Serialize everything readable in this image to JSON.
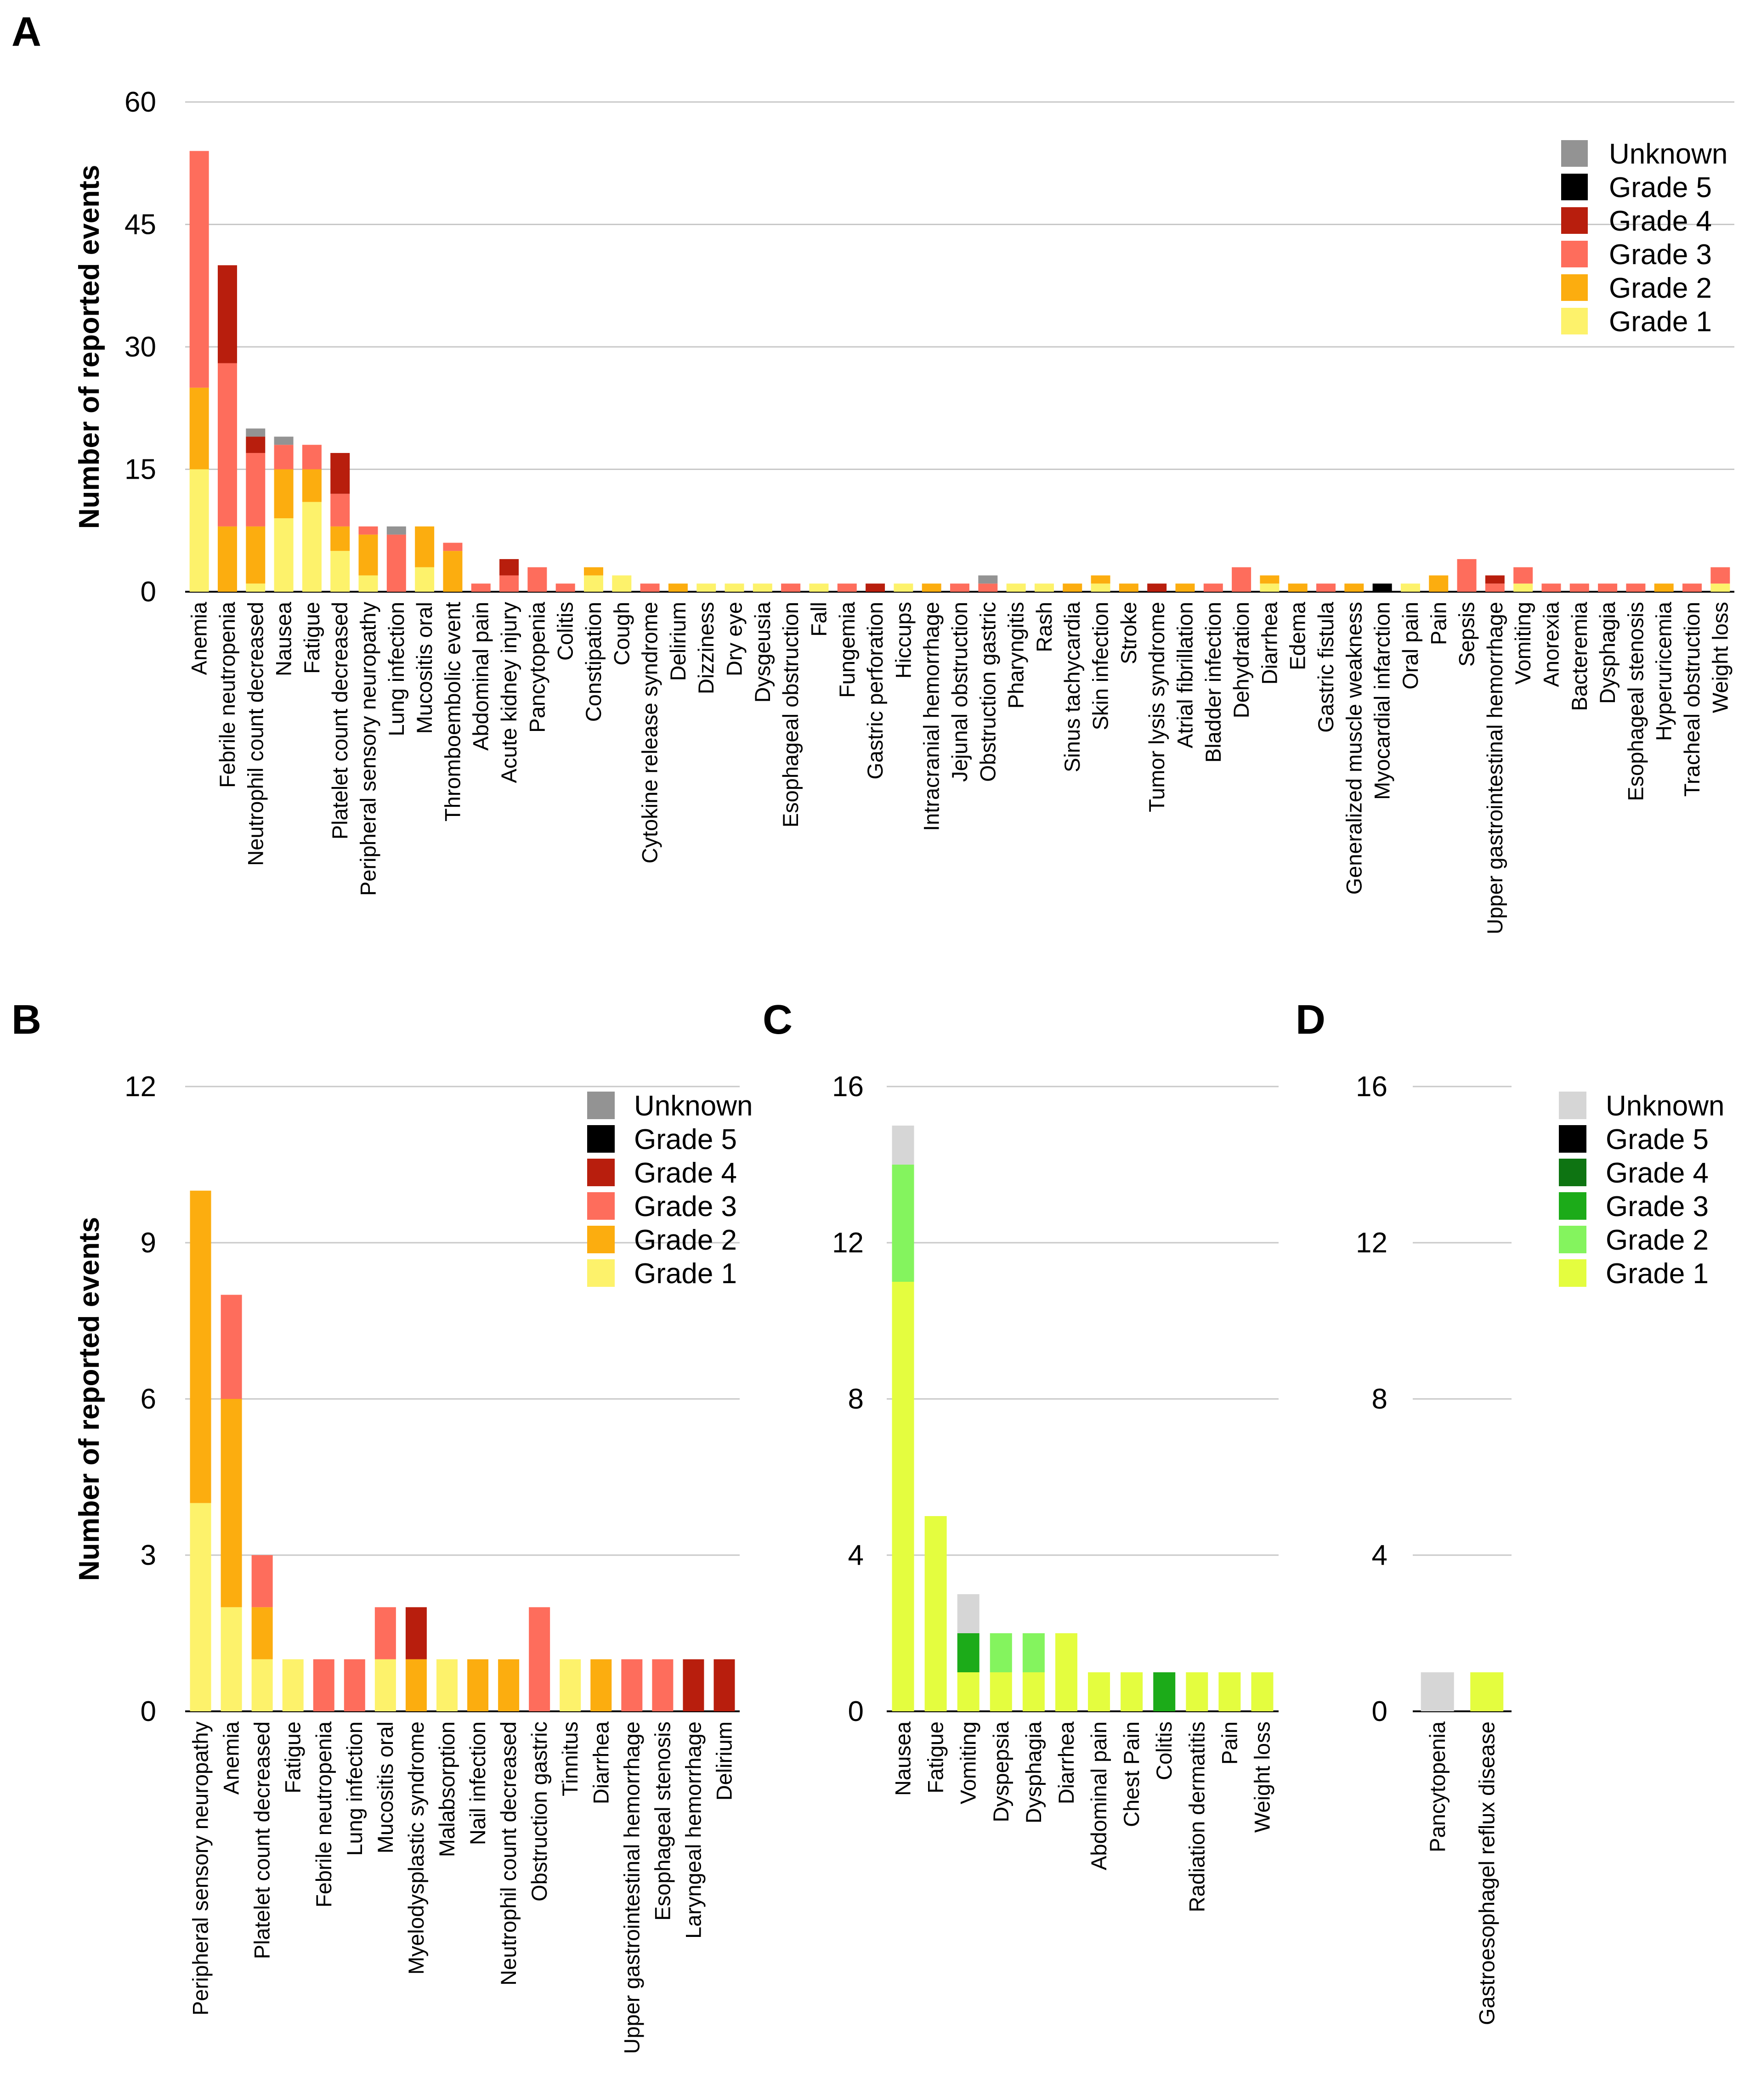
{
  "chart_data": [
    {
      "panel": "A",
      "type": "stacked-bar",
      "ylabel": "Number of reported events",
      "ylim": [
        0,
        60
      ],
      "yticks": [
        0,
        15,
        30,
        45,
        60
      ],
      "legend": [
        "Unknown",
        "Grade 5",
        "Grade 4",
        "Grade 3",
        "Grade 2",
        "Grade 1"
      ],
      "colors": {
        "Unknown": "#939393",
        "Grade 5": "#000000",
        "Grade 4": "#b81e0d",
        "Grade 3": "#fe6d5c",
        "Grade 2": "#fcad0f",
        "Grade 1": "#fdf26b"
      },
      "categories": [
        "Anemia",
        "Febrile neutropenia",
        "Neutrophil count decreased",
        "Nausea",
        "Fatigue",
        "Platelet count decreased",
        "Peripheral sensory neuropathy",
        "Lung infection",
        "Mucositis oral",
        "Thromboembolic event",
        "Abdominal pain",
        "Acute kidney injury",
        "Pancytopenia",
        "Colitis",
        "Constipation",
        "Cough",
        "Cytokine release syndrome",
        "Delirium",
        "Dizziness",
        "Dry eye",
        "Dysgeusia",
        "Esophageal obstruction",
        "Fall",
        "Fungemia",
        "Gastric perforation",
        "Hiccups",
        "Intracranial hemorrhage",
        "Jejunal obstruction",
        "Obstruction gastric",
        "Pharyngitis",
        "Rash",
        "Sinus tachycardia",
        "Skin infection",
        "Stroke",
        "Tumor lysis syndrome",
        "Atrial fibrillation",
        "Bladder infection",
        "Dehydration",
        "Diarrhea",
        "Edema",
        "Gastric fistula",
        "Generalized muscle weakness",
        "Myocardial infarction",
        "Oral pain",
        "Pain",
        "Sepsis",
        "Upper gastrointestinal hemorrhage",
        "Vomiting",
        "Anorexia",
        "Bacteremia",
        "Dysphagia",
        "Esophageal stenosis",
        "Hyperuricemia",
        "Tracheal obstruction",
        "Weight loss"
      ],
      "series": [
        {
          "name": "Grade 1",
          "values": [
            15,
            0,
            1,
            9,
            11,
            5,
            2,
            0,
            3,
            0,
            0,
            0,
            0,
            0,
            2,
            2,
            0,
            0,
            1,
            1,
            1,
            0,
            1,
            0,
            0,
            1,
            0,
            0,
            0,
            1,
            1,
            0,
            1,
            0,
            0,
            0,
            0,
            0,
            1,
            0,
            0,
            0,
            0,
            1,
            0,
            0,
            0,
            1,
            0,
            0,
            0,
            0,
            0,
            0,
            1
          ]
        },
        {
          "name": "Grade 2",
          "values": [
            10,
            8,
            7,
            6,
            4,
            3,
            5,
            0,
            5,
            5,
            0,
            0,
            0,
            0,
            1,
            0,
            0,
            1,
            0,
            0,
            0,
            0,
            0,
            0,
            0,
            0,
            1,
            0,
            0,
            0,
            0,
            1,
            1,
            1,
            0,
            1,
            0,
            0,
            1,
            1,
            0,
            1,
            0,
            0,
            2,
            0,
            0,
            0,
            0,
            0,
            0,
            0,
            1,
            0,
            0
          ]
        },
        {
          "name": "Grade 3",
          "values": [
            29,
            20,
            9,
            3,
            3,
            4,
            1,
            7,
            0,
            1,
            1,
            2,
            3,
            1,
            0,
            0,
            1,
            0,
            0,
            0,
            0,
            1,
            0,
            1,
            0,
            0,
            0,
            1,
            1,
            0,
            0,
            0,
            0,
            0,
            0,
            0,
            1,
            3,
            0,
            0,
            1,
            0,
            0,
            0,
            0,
            4,
            1,
            2,
            1,
            1,
            1,
            1,
            0,
            1,
            2
          ]
        },
        {
          "name": "Grade 4",
          "values": [
            0,
            12,
            2,
            0,
            0,
            5,
            0,
            0,
            0,
            0,
            0,
            2,
            0,
            0,
            0,
            0,
            0,
            0,
            0,
            0,
            0,
            0,
            0,
            0,
            1,
            0,
            0,
            0,
            0,
            0,
            0,
            0,
            0,
            0,
            1,
            0,
            0,
            0,
            0,
            0,
            0,
            0,
            0,
            0,
            0,
            0,
            1,
            0,
            0,
            0,
            0,
            0,
            0,
            0,
            0
          ]
        },
        {
          "name": "Grade 5",
          "values": [
            0,
            0,
            0,
            0,
            0,
            0,
            0,
            0,
            0,
            0,
            0,
            0,
            0,
            0,
            0,
            0,
            0,
            0,
            0,
            0,
            0,
            0,
            0,
            0,
            0,
            0,
            0,
            0,
            0,
            0,
            0,
            0,
            0,
            0,
            0,
            0,
            0,
            0,
            0,
            0,
            0,
            0,
            1,
            0,
            0,
            0,
            0,
            0,
            0,
            0,
            0,
            0,
            0,
            0,
            0
          ]
        },
        {
          "name": "Unknown",
          "values": [
            0,
            0,
            1,
            1,
            0,
            0,
            0,
            1,
            0,
            0,
            0,
            0,
            0,
            0,
            0,
            0,
            0,
            0,
            0,
            0,
            0,
            0,
            0,
            0,
            0,
            0,
            0,
            0,
            1,
            0,
            0,
            0,
            0,
            0,
            0,
            0,
            0,
            0,
            0,
            0,
            0,
            0,
            0,
            0,
            0,
            0,
            0,
            0,
            0,
            0,
            0,
            0,
            0,
            0,
            0
          ]
        }
      ]
    },
    {
      "panel": "B",
      "type": "stacked-bar",
      "ylabel": "Number of reported events",
      "ylim": [
        0,
        12
      ],
      "yticks": [
        0,
        3,
        6,
        9,
        12
      ],
      "legend": [
        "Unknown",
        "Grade 5",
        "Grade 4",
        "Grade 3",
        "Grade 2",
        "Grade 1"
      ],
      "colors": {
        "Unknown": "#939393",
        "Grade 5": "#000000",
        "Grade 4": "#b81e0d",
        "Grade 3": "#fe6d5c",
        "Grade 2": "#fcad0f",
        "Grade 1": "#fdf26b"
      },
      "categories": [
        "Peripheral sensory neuropathy",
        "Anemia",
        "Platelet count decreased",
        "Fatigue",
        "Febrile neutropenia",
        "Lung infection",
        "Mucositis oral",
        "Myelodysplastic syndrome",
        "Malabsorption",
        "Nail infection",
        "Neutrophil count decreased",
        "Obstruction gastric",
        "Tinnitus",
        "Diarrhea",
        "Upper gastrointestinal hemorrhage",
        "Esophageal stenosis",
        "Laryngeal hemorrhage",
        "Delirium"
      ],
      "series": [
        {
          "name": "Grade 1",
          "values": [
            4,
            2,
            1,
            1,
            0,
            0,
            1,
            0,
            1,
            0,
            0,
            0,
            1,
            0,
            0,
            0,
            0,
            0
          ]
        },
        {
          "name": "Grade 2",
          "values": [
            6,
            4,
            1,
            0,
            0,
            0,
            0,
            1,
            0,
            1,
            1,
            0,
            0,
            1,
            0,
            0,
            0,
            0
          ]
        },
        {
          "name": "Grade 3",
          "values": [
            0,
            2,
            1,
            0,
            1,
            1,
            1,
            0,
            0,
            0,
            0,
            2,
            0,
            0,
            1,
            1,
            0,
            0
          ]
        },
        {
          "name": "Grade 4",
          "values": [
            0,
            0,
            0,
            0,
            0,
            0,
            0,
            1,
            0,
            0,
            0,
            0,
            0,
            0,
            0,
            0,
            1,
            1
          ]
        },
        {
          "name": "Grade 5",
          "values": [
            0,
            0,
            0,
            0,
            0,
            0,
            0,
            0,
            0,
            0,
            0,
            0,
            0,
            0,
            0,
            0,
            0,
            0
          ]
        },
        {
          "name": "Unknown",
          "values": [
            0,
            0,
            0,
            0,
            0,
            0,
            0,
            0,
            0,
            0,
            0,
            0,
            0,
            0,
            0,
            0,
            0,
            0
          ]
        }
      ]
    },
    {
      "panel": "C",
      "type": "stacked-bar",
      "ylabel": "",
      "ylim": [
        0,
        16
      ],
      "yticks": [
        0,
        4,
        8,
        12,
        16
      ],
      "legend": [],
      "colors": {
        "Unknown": "#d6d6d6",
        "Grade 5": "#000000",
        "Grade 4": "#0e7412",
        "Grade 3": "#1cab19",
        "Grade 2": "#84f45e",
        "Grade 1": "#e4fd3f"
      },
      "categories": [
        "Nausea",
        "Fatigue",
        "Vomiting",
        "Dyspepsia",
        "Dysphagia",
        "Diarrhea",
        "Abdominal pain",
        "Chest Pain",
        "Colitis",
        "Radiation dermatitis",
        "Pain",
        "Weight loss"
      ],
      "series": [
        {
          "name": "Grade 1",
          "values": [
            11,
            5,
            1,
            1,
            1,
            2,
            1,
            1,
            0,
            1,
            1,
            1
          ]
        },
        {
          "name": "Grade 2",
          "values": [
            3,
            0,
            0,
            1,
            1,
            0,
            0,
            0,
            0,
            0,
            0,
            0
          ]
        },
        {
          "name": "Grade 3",
          "values": [
            0,
            0,
            1,
            0,
            0,
            0,
            0,
            0,
            1,
            0,
            0,
            0
          ]
        },
        {
          "name": "Grade 4",
          "values": [
            0,
            0,
            0,
            0,
            0,
            0,
            0,
            0,
            0,
            0,
            0,
            0
          ]
        },
        {
          "name": "Grade 5",
          "values": [
            0,
            0,
            0,
            0,
            0,
            0,
            0,
            0,
            0,
            0,
            0,
            0
          ]
        },
        {
          "name": "Unknown",
          "values": [
            1,
            0,
            1,
            0,
            0,
            0,
            0,
            0,
            0,
            0,
            0,
            0
          ]
        }
      ]
    },
    {
      "panel": "D",
      "type": "stacked-bar",
      "ylabel": "",
      "ylim": [
        0,
        16
      ],
      "yticks": [
        0,
        4,
        8,
        12,
        16
      ],
      "legend": [
        "Unknown",
        "Grade 5",
        "Grade 4",
        "Grade 3",
        "Grade 2",
        "Grade 1"
      ],
      "colors": {
        "Unknown": "#d6d6d6",
        "Grade 5": "#000000",
        "Grade 4": "#0e7412",
        "Grade 3": "#1cab19",
        "Grade 2": "#84f45e",
        "Grade 1": "#e4fd3f"
      },
      "categories": [
        "Pancytopenia",
        "Gastroesophagel reflux disease"
      ],
      "series": [
        {
          "name": "Grade 1",
          "values": [
            0,
            1
          ]
        },
        {
          "name": "Grade 2",
          "values": [
            0,
            0
          ]
        },
        {
          "name": "Grade 3",
          "values": [
            0,
            0
          ]
        },
        {
          "name": "Grade 4",
          "values": [
            0,
            0
          ]
        },
        {
          "name": "Grade 5",
          "values": [
            0,
            0
          ]
        },
        {
          "name": "Unknown",
          "values": [
            1,
            0
          ]
        }
      ]
    }
  ]
}
